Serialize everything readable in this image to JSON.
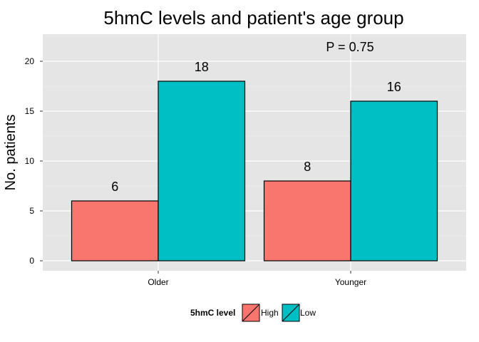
{
  "chart_data": {
    "type": "bar",
    "title": "5hmC levels and patient's age group",
    "ylabel": "No. patients",
    "xlabel": "",
    "categories": [
      "Older",
      "Younger"
    ],
    "series": [
      {
        "name": "High",
        "values": [
          6,
          8
        ],
        "color": "#F8766D"
      },
      {
        "name": "Low",
        "values": [
          18,
          16
        ],
        "color": "#00BFC4"
      }
    ],
    "ylim": [
      0,
      22.6
    ],
    "yticks": [
      0,
      5,
      10,
      15,
      20
    ],
    "grid": true,
    "legend": {
      "title": "5hmC level",
      "position": "bottom"
    },
    "annotation": "P = 0.75"
  }
}
